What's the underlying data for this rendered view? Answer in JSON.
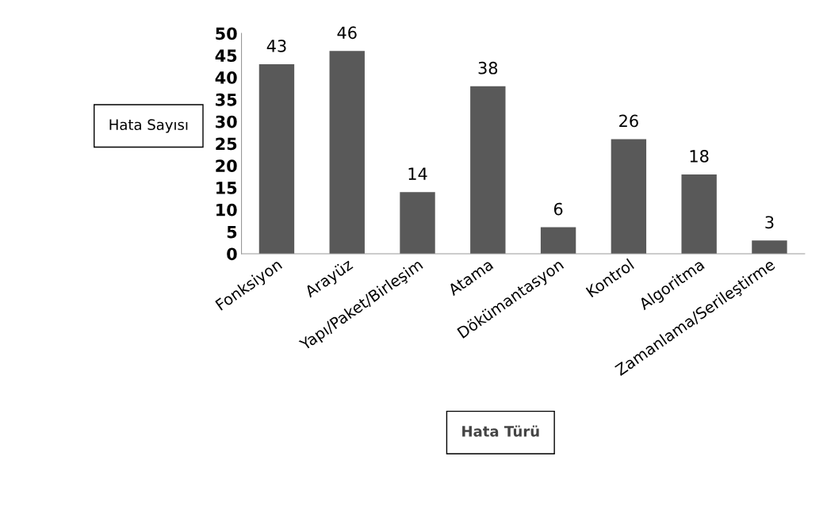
{
  "chart_data": {
    "type": "bar",
    "xlabel": "Hata Türü",
    "ylabel": "Hata Sayısı",
    "categories": [
      "Fonksiyon",
      "Arayüz",
      "Yapı/Paket/Birleşim",
      "Atama",
      "Dökümantasyon",
      "Kontrol",
      "Algoritma",
      "Zamanlama/Serileştirme"
    ],
    "values": [
      43,
      46,
      14,
      38,
      6,
      26,
      18,
      3
    ],
    "color": "#595959",
    "ylim": [
      0,
      50
    ],
    "yticks": [
      0,
      5,
      10,
      15,
      20,
      25,
      30,
      35,
      40,
      45,
      50
    ],
    "grid": false,
    "data_labels": true
  }
}
